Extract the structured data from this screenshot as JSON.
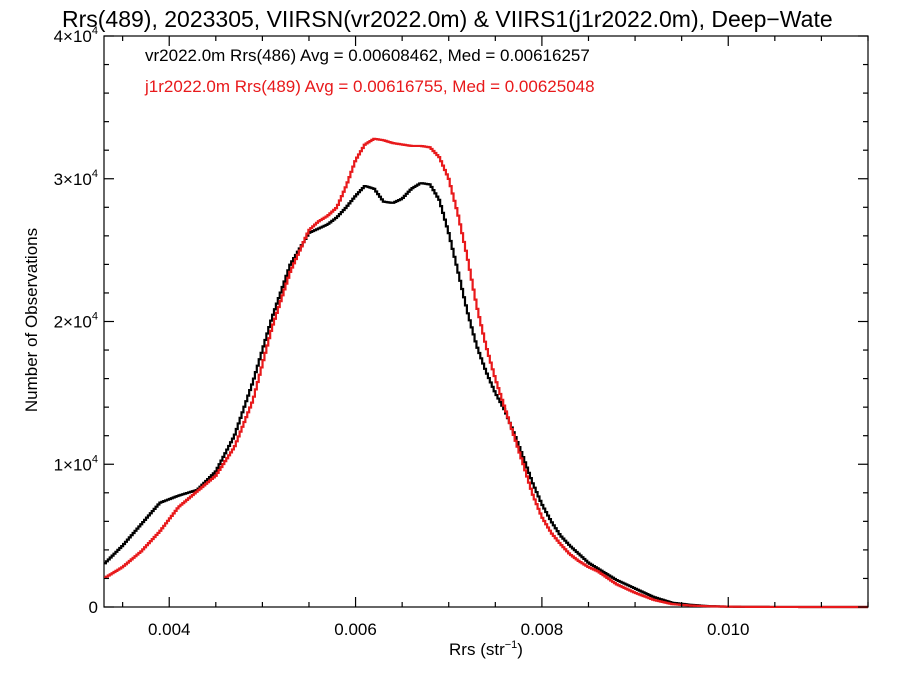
{
  "chart_data": {
    "type": "line",
    "title": "Rrs(489), 2023305, VIIRSN(vr2022.0m) & VIIRS1(j1r2022.0m), Deep−Wate",
    "xlabel": "Rrs (str",
    "xlabel_exp": "−1",
    "xlabel_close": ")",
    "ylabel": "Number of Observations",
    "xlim": [
      0.0033,
      0.0115
    ],
    "ylim": [
      0,
      40000
    ],
    "grid": false,
    "x_ticks": [
      {
        "value": 0.004,
        "label": "0.004"
      },
      {
        "value": 0.006,
        "label": "0.006"
      },
      {
        "value": 0.008,
        "label": "0.008"
      },
      {
        "value": 0.01,
        "label": "0.010"
      }
    ],
    "y_ticks": [
      {
        "value": 0,
        "mant": "0",
        "exp": ""
      },
      {
        "value": 10000,
        "mant": "1×10",
        "exp": "4"
      },
      {
        "value": 20000,
        "mant": "2×10",
        "exp": "4"
      },
      {
        "value": 30000,
        "mant": "3×10",
        "exp": "4"
      },
      {
        "value": 40000,
        "mant": "4×10",
        "exp": "4"
      }
    ],
    "legend_position": "top-left",
    "series": [
      {
        "name": "vr2022.0m Rrs(486)",
        "stats_label": "vr2022.0m Rrs(486) Avg = 0.00608462, Med = 0.00616257",
        "color": "#000000",
        "x": [
          0.0033,
          0.0035,
          0.0037,
          0.0039,
          0.0041,
          0.0043,
          0.0045,
          0.0047,
          0.0049,
          0.0051,
          0.0053,
          0.0055,
          0.0056,
          0.0057,
          0.0058,
          0.0059,
          0.006,
          0.0061,
          0.0062,
          0.0063,
          0.0064,
          0.0065,
          0.0066,
          0.0067,
          0.0068,
          0.0069,
          0.007,
          0.0071,
          0.0072,
          0.0073,
          0.0074,
          0.0075,
          0.0076,
          0.0077,
          0.0078,
          0.0079,
          0.008,
          0.0081,
          0.0082,
          0.0083,
          0.0084,
          0.0085,
          0.0086,
          0.0088,
          0.009,
          0.0092,
          0.0094,
          0.0096,
          0.0098,
          0.01,
          0.0102,
          0.0105,
          0.011,
          0.0115
        ],
        "y": [
          3000,
          4300,
          5800,
          7300,
          7800,
          8200,
          9500,
          12000,
          15800,
          20200,
          24000,
          26200,
          26500,
          26800,
          27300,
          28000,
          28800,
          29500,
          29300,
          28400,
          28300,
          28600,
          29300,
          29700,
          29600,
          28500,
          26200,
          23500,
          20700,
          18300,
          16500,
          15000,
          13800,
          12200,
          10500,
          8700,
          7200,
          6000,
          5000,
          4300,
          3700,
          3100,
          2700,
          1900,
          1300,
          700,
          300,
          150,
          60,
          25,
          10,
          5,
          0,
          0
        ]
      },
      {
        "name": "j1r2022.0m Rrs(489)",
        "stats_label": "j1r2022.0m Rrs(489) Avg = 0.00616755, Med = 0.00625048",
        "color": "#e8191b",
        "x": [
          0.0033,
          0.0035,
          0.0037,
          0.0039,
          0.0041,
          0.0043,
          0.0045,
          0.0047,
          0.0049,
          0.0051,
          0.0053,
          0.0055,
          0.0056,
          0.0057,
          0.0058,
          0.0059,
          0.006,
          0.0061,
          0.0062,
          0.0063,
          0.0064,
          0.0065,
          0.0066,
          0.0067,
          0.0068,
          0.0069,
          0.007,
          0.0071,
          0.0072,
          0.0073,
          0.0074,
          0.0075,
          0.0076,
          0.0077,
          0.0078,
          0.0079,
          0.008,
          0.0081,
          0.0082,
          0.0083,
          0.0084,
          0.0085,
          0.0086,
          0.0088,
          0.009,
          0.0092,
          0.0094,
          0.0096,
          0.0098,
          0.01,
          0.0102,
          0.0105,
          0.011,
          0.0115
        ],
        "y": [
          2000,
          2800,
          3900,
          5300,
          7000,
          8100,
          9200,
          11200,
          14500,
          19500,
          23500,
          26400,
          27000,
          27400,
          28000,
          29500,
          31300,
          32400,
          32800,
          32700,
          32500,
          32400,
          32300,
          32300,
          32200,
          31500,
          30000,
          27500,
          24500,
          21100,
          18300,
          16000,
          14000,
          12000,
          10000,
          7900,
          6300,
          5200,
          4400,
          3700,
          3200,
          2800,
          2500,
          1600,
          1000,
          500,
          200,
          100,
          50,
          25,
          10,
          5,
          0,
          0
        ]
      }
    ]
  }
}
